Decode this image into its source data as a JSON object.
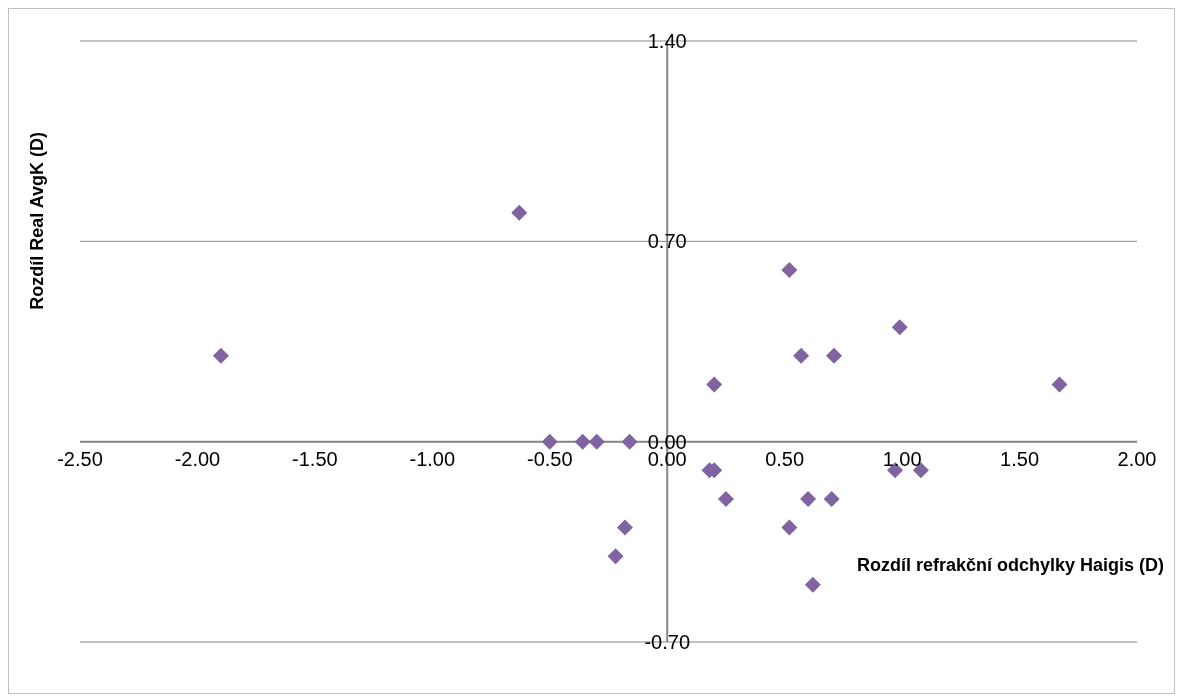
{
  "chart_data": {
    "type": "scatter",
    "xlabel": "Rozdíl refrakční odchylky Haigis (D)",
    "ylabel": "Rozdíl Real AvgK (D)",
    "x": [
      -1.9,
      -0.63,
      -0.5,
      -0.36,
      -0.3,
      -0.16,
      -0.18,
      -0.22,
      0.18,
      0.2,
      0.2,
      0.25,
      0.52,
      0.52,
      0.57,
      0.6,
      0.62,
      0.7,
      0.71,
      0.97,
      0.99,
      1.08,
      1.67
    ],
    "values": [
      0.3,
      0.8,
      0,
      0,
      0,
      0,
      -0.3,
      -0.4,
      -0.1,
      -0.1,
      0.2,
      -0.2,
      0.6,
      -0.3,
      0.3,
      -0.2,
      -0.5,
      -0.2,
      0.3,
      -0.1,
      0.4,
      -0.1,
      0.2
    ],
    "color": "#8064a2",
    "marker": "diamond",
    "grid": "y",
    "xlim": [
      -2.5,
      2.0
    ],
    "xticks": [
      {
        "value": -2.5,
        "label": "-2.50"
      },
      {
        "value": -2,
        "label": "-2.00"
      },
      {
        "value": -1.5,
        "label": "-1.50"
      },
      {
        "value": -1,
        "label": "-1.00"
      },
      {
        "value": -0.5,
        "label": "-0.50"
      },
      {
        "value": 0,
        "label": "0.00"
      },
      {
        "value": 0.5,
        "label": "0.50"
      },
      {
        "value": 1,
        "label": "1.00"
      },
      {
        "value": 1.5,
        "label": "1.50"
      },
      {
        "value": 2,
        "label": "2.00"
      }
    ],
    "ylim": [
      -0.7,
      1.4
    ],
    "yticks": [
      {
        "value": -0.7,
        "label": "-0.70"
      },
      {
        "value": 0,
        "label": "0.00"
      },
      {
        "value": 0.7,
        "label": "0.70"
      },
      {
        "value": 1.4,
        "label": "1.40"
      }
    ]
  }
}
